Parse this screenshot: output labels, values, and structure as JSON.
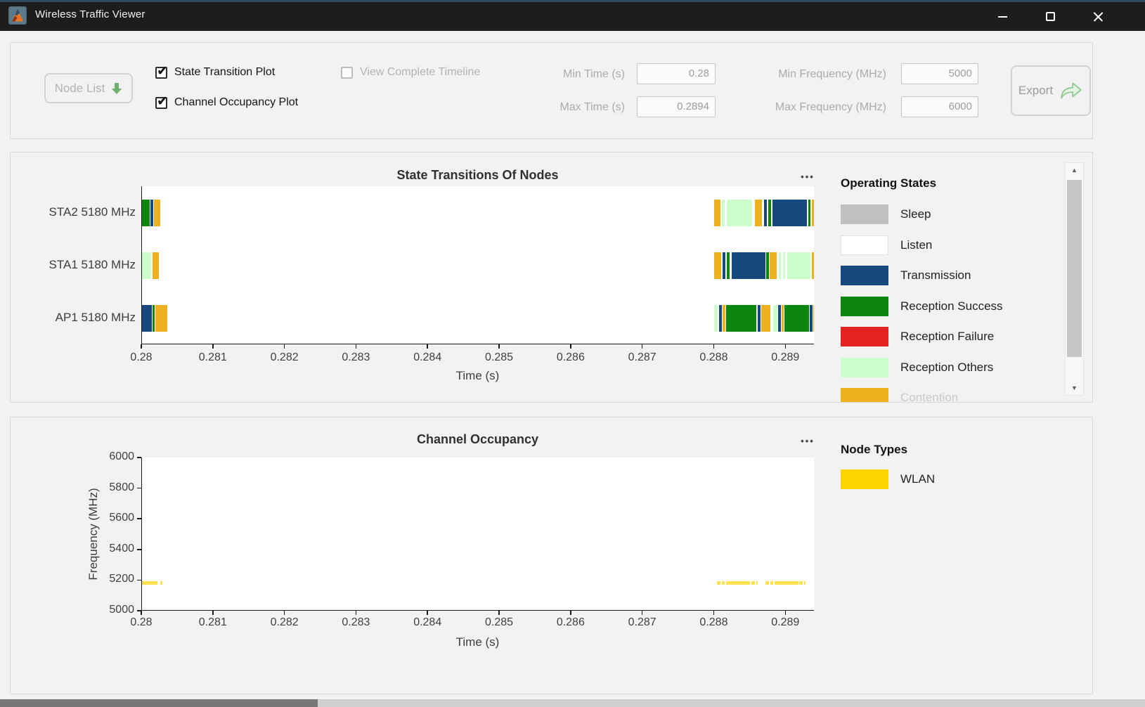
{
  "titlebar": {
    "title": "Wireless Traffic Viewer"
  },
  "icons": {
    "panel_menu": "•••"
  },
  "colors": {
    "accent_green": "#6fb26f",
    "export_icon": "#e3f3e0",
    "export_icon_stroke": "#8cc88c",
    "titlebar_bg": "#1d1d1d",
    "titlebar_strip": "#2d4b59",
    "panel_border": "#d9d9d9",
    "axis_line": "#1a1a1a"
  },
  "toolbar": {
    "node_list": {
      "label": "Node List"
    },
    "checkboxes": [
      {
        "label": "State Transition Plot",
        "checked": true,
        "enabled": true
      },
      {
        "label": "Channel Occupancy Plot",
        "checked": true,
        "enabled": true
      },
      {
        "label": "View Complete Timeline",
        "checked": false,
        "enabled": false
      }
    ],
    "fields": [
      {
        "label": "Min Time (s)",
        "value": "0.28"
      },
      {
        "label": "Max Time (s)",
        "value": "0.2894"
      },
      {
        "label": "Min Frequency (MHz)",
        "value": "5000"
      },
      {
        "label": "Max Frequency (MHz)",
        "value": "6000"
      }
    ],
    "export": {
      "label": "Export"
    }
  },
  "state_colors": {
    "sleep": "#c0c0c0",
    "listen": "#ffffff",
    "tx": "#17497f",
    "rx_success": "#0d860d",
    "rx_failure": "#e32222",
    "rx_others": "#ccfecb",
    "contention": "#edb120"
  },
  "legend_operating_states": {
    "title": "Operating States",
    "items": [
      {
        "label": "Sleep",
        "state": "sleep"
      },
      {
        "label": "Listen",
        "state": "listen"
      },
      {
        "label": "Transmission",
        "state": "tx"
      },
      {
        "label": "Reception Success",
        "state": "rx_success"
      },
      {
        "label": "Reception Failure",
        "state": "rx_failure"
      },
      {
        "label": "Reception Others",
        "state": "rx_others"
      },
      {
        "label": "Contention",
        "state": "contention",
        "clipped": true
      }
    ]
  },
  "legend_node_types": {
    "title": "Node Types",
    "items": [
      {
        "label": "WLAN",
        "color": "#fdd300"
      }
    ]
  },
  "chart_data": [
    {
      "type": "timeline",
      "title": "State Transitions Of Nodes",
      "xlabel": "Time (s)",
      "xlim": [
        0.28,
        0.2894
      ],
      "xticks": [
        0.28,
        0.281,
        0.282,
        0.283,
        0.284,
        0.285,
        0.286,
        0.287,
        0.288,
        0.289
      ],
      "xtick_labels": [
        "0.28",
        "0.281",
        "0.282",
        "0.283",
        "0.284",
        "0.285",
        "0.286",
        "0.287",
        "0.288",
        "0.289"
      ],
      "rows": [
        {
          "label": "STA2 5180 MHz",
          "segments": [
            [
              0.28,
              0.280112,
              "rx_success"
            ],
            [
              0.280122,
              0.280158,
              "tx"
            ],
            [
              0.280168,
              0.280258,
              "contention"
            ],
            [
              0.288,
              0.288082,
              "contention"
            ],
            [
              0.288104,
              0.288144,
              "rx_others"
            ],
            [
              0.288168,
              0.288528,
              "rx_others"
            ],
            [
              0.288566,
              0.288668,
              "contention"
            ],
            [
              0.288688,
              0.288728,
              "tx"
            ],
            [
              0.288748,
              0.288788,
              "rx_success"
            ],
            [
              0.288812,
              0.289296,
              "tx"
            ],
            [
              0.289312,
              0.289344,
              "rx_success"
            ],
            [
              0.289356,
              0.2894,
              "contention"
            ]
          ]
        },
        {
          "label": "STA1 5180 MHz",
          "segments": [
            [
              0.28,
              0.280132,
              "rx_others"
            ],
            [
              0.280152,
              0.280238,
              "contention"
            ],
            [
              0.288,
              0.288098,
              "contention"
            ],
            [
              0.288116,
              0.288156,
              "tx"
            ],
            [
              0.288176,
              0.288216,
              "rx_success"
            ],
            [
              0.288238,
              0.288708,
              "tx"
            ],
            [
              0.288726,
              0.28876,
              "rx_success"
            ],
            [
              0.288772,
              0.28887,
              "contention"
            ],
            [
              0.288896,
              0.288928,
              "rx_others"
            ],
            [
              0.288956,
              0.288988,
              "rx_others"
            ],
            [
              0.289016,
              0.289344,
              "rx_others"
            ],
            [
              0.28936,
              0.2894,
              "contention"
            ]
          ]
        },
        {
          "label": "AP1 5180 MHz",
          "segments": [
            [
              0.28,
              0.280134,
              "tx"
            ],
            [
              0.280144,
              0.280176,
              "rx_success"
            ],
            [
              0.280186,
              0.28035,
              "contention"
            ],
            [
              0.288,
              0.288048,
              "rx_others"
            ],
            [
              0.288064,
              0.288104,
              "tx"
            ],
            [
              0.288112,
              0.288148,
              "contention"
            ],
            [
              0.288158,
              0.288588,
              "rx_success"
            ],
            [
              0.2886,
              0.28864,
              "tx"
            ],
            [
              0.288656,
              0.28878,
              "contention"
            ],
            [
              0.288816,
              0.288876,
              "rx_others"
            ],
            [
              0.28889,
              0.28893,
              "tx"
            ],
            [
              0.288938,
              0.288972,
              "contention"
            ],
            [
              0.288982,
              0.28932,
              "rx_success"
            ],
            [
              0.28933,
              0.289368,
              "tx"
            ],
            [
              0.289376,
              0.2894,
              "contention"
            ]
          ]
        }
      ]
    },
    {
      "type": "occupancy",
      "title": "Channel Occupancy",
      "xlabel": "Time (s)",
      "ylabel": "Frequency (MHz)",
      "xlim": [
        0.28,
        0.2894
      ],
      "ylim": [
        5000,
        6000
      ],
      "xticks": [
        0.28,
        0.281,
        0.282,
        0.283,
        0.284,
        0.285,
        0.286,
        0.287,
        0.288,
        0.289
      ],
      "xtick_labels": [
        "0.28",
        "0.281",
        "0.282",
        "0.283",
        "0.284",
        "0.285",
        "0.286",
        "0.287",
        "0.288",
        "0.289"
      ],
      "yticks": [
        5000,
        5200,
        5400,
        5600,
        5800,
        6000
      ],
      "ytick_labels": [
        "5000",
        "5200",
        "5400",
        "5600",
        "5800",
        "6000"
      ],
      "bands": [
        {
          "node_type": "WLAN",
          "frequency_mhz": 5180,
          "color": "#ffe14d",
          "segments": [
            [
              0.28,
              0.28022
            ],
            [
              0.280252,
              0.280282
            ],
            [
              0.288032,
              0.288082
            ],
            [
              0.2881,
              0.28814
            ],
            [
              0.288158,
              0.2885
            ],
            [
              0.288518,
              0.288566
            ],
            [
              0.288584,
              0.288608
            ],
            [
              0.288716,
              0.288766
            ],
            [
              0.288784,
              0.288824
            ],
            [
              0.288842,
              0.28917
            ],
            [
              0.289188,
              0.289234
            ],
            [
              0.289252,
              0.289276
            ]
          ]
        }
      ]
    }
  ]
}
